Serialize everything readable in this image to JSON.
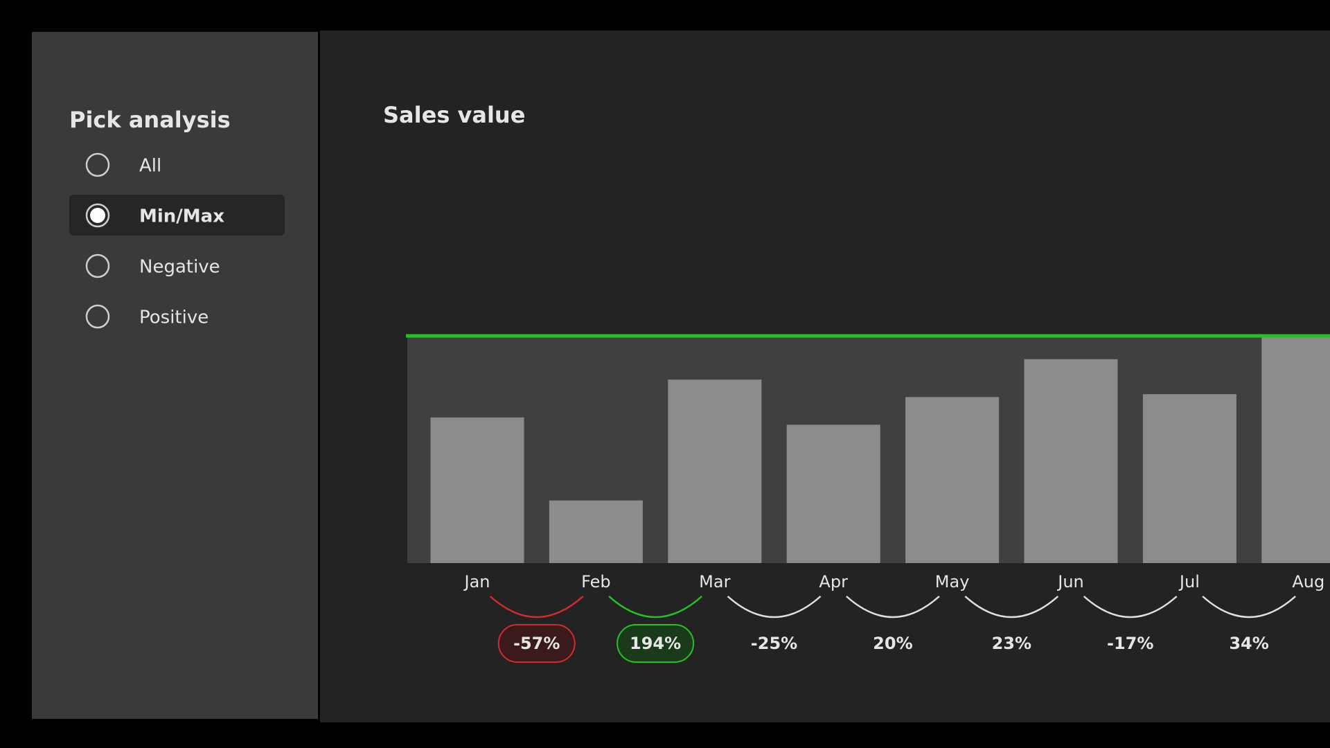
{
  "sidebar": {
    "title": "Pick analysis",
    "options": [
      "All",
      "Min/Max",
      "Negative",
      "Positive"
    ],
    "selected": 1
  },
  "chart_data": {
    "type": "bar",
    "title": "Sales value",
    "categories": [
      "Jan",
      "Feb",
      "Mar",
      "Apr",
      "May",
      "Jun",
      "Jul",
      "Aug"
    ],
    "values": [
      100,
      43,
      126,
      95,
      114,
      140,
      116,
      156
    ],
    "color": "#8c8c8c",
    "ylim": [
      0,
      156
    ],
    "reference_line": {
      "value": 156,
      "color": "#22c322"
    },
    "changes": {
      "values": [
        -57,
        194,
        -25,
        20,
        23,
        -17,
        34
      ],
      "value_labels": [
        "-57%",
        "194%",
        "-25%",
        "20%",
        "23%",
        "-17%",
        "34%"
      ],
      "min_color": "#d42b2b",
      "max_color": "#22c322"
    }
  }
}
